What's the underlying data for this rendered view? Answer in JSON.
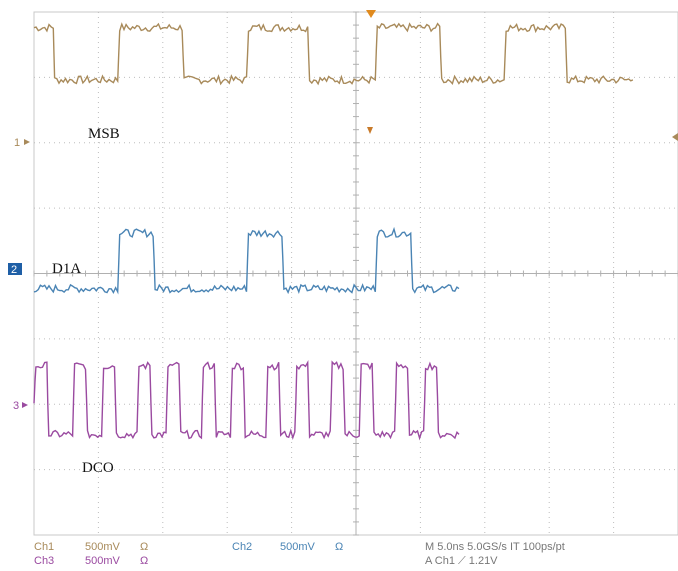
{
  "chart_data": {
    "type": "line",
    "grid": true,
    "x_divisions": 10,
    "y_divisions": 8,
    "series": [
      {
        "name": "MSB",
        "channel_marker": "1",
        "color": "#a88a5a",
        "x": [
          0,
          0.3,
          0.32,
          1.3,
          1.33,
          2.3,
          2.33,
          3.3,
          3.33,
          4.25,
          4.28,
          5.3,
          5.33,
          6.3,
          6.33,
          7.3,
          7.33,
          8.25,
          8.28,
          9.3
        ],
        "y": [
          1.75,
          1.75,
          0.95,
          0.95,
          1.75,
          1.75,
          0.95,
          0.95,
          1.75,
          1.75,
          0.95,
          0.95,
          1.75,
          1.75,
          0.95,
          0.95,
          1.75,
          1.75,
          0.95,
          0.95
        ]
      },
      {
        "name": "D1A",
        "channel_marker": "2",
        "color": "#4a84b4",
        "x": [
          0,
          1.3,
          1.33,
          1.85,
          1.88,
          3.3,
          3.33,
          3.85,
          3.88,
          5.3,
          5.33,
          5.85,
          5.88,
          6.6
        ],
        "y": [
          -0.3,
          -0.3,
          0.55,
          0.55,
          -0.3,
          -0.3,
          0.55,
          0.55,
          -0.3,
          -0.3,
          0.55,
          0.55,
          -0.3,
          -0.3
        ]
      },
      {
        "name": "DCO",
        "channel_marker": "3",
        "color": "#9a4aa0",
        "x": [
          0,
          0.03,
          0.2,
          0.23,
          0.6,
          0.63,
          0.8,
          0.83,
          1.05,
          1.08,
          1.25,
          1.28,
          1.6,
          1.63,
          1.8,
          1.83,
          2.05,
          2.08,
          2.25,
          2.28,
          2.6,
          2.63,
          2.8,
          2.83,
          3.05,
          3.08,
          3.25,
          3.28,
          3.6,
          3.63,
          3.8,
          3.83,
          4.05,
          4.08,
          4.25,
          4.28,
          4.6,
          4.63,
          4.8,
          4.83,
          5.05,
          5.08,
          5.25,
          5.28,
          5.6,
          5.63,
          5.8,
          5.83,
          6.05,
          6.08,
          6.25,
          6.28,
          6.6
        ],
        "y": [
          0.05,
          0.6,
          0.6,
          -0.45,
          -0.45,
          0.6,
          0.6,
          -0.45,
          -0.45,
          0.6,
          0.6,
          -0.45,
          -0.45,
          0.6,
          0.6,
          -0.45,
          -0.45,
          0.6,
          0.6,
          -0.45,
          -0.45,
          0.6,
          0.6,
          -0.45,
          -0.45,
          0.6,
          0.6,
          -0.45,
          -0.45,
          0.6,
          0.6,
          -0.45,
          -0.45,
          0.6,
          0.6,
          -0.45,
          -0.45,
          0.6,
          0.6,
          -0.45,
          -0.45,
          0.6,
          0.6,
          -0.45,
          -0.45,
          0.6,
          0.6,
          -0.45,
          -0.45,
          0.6,
          0.6,
          -0.45,
          -0.45
        ]
      }
    ],
    "annotations": {
      "msb_label": "MSB",
      "d1a_label": "D1A",
      "dco_label": "DCO",
      "marker_1": "1",
      "marker_2": "2",
      "marker_3": "3"
    }
  },
  "status_bar": {
    "ch1_name": "Ch1",
    "ch1_scale": "500mV",
    "ch1_coupling": "Ω",
    "ch2_name": "Ch2",
    "ch2_scale": "500mV",
    "ch2_coupling": "Ω",
    "ch3_name": "Ch3",
    "ch3_scale": "500mV",
    "ch3_coupling": "Ω",
    "timebase": "M 5.0ns 5.0GS/s IT 100ps/pt",
    "trigger": "A Ch1 ⟋ 1.21V",
    "colors": {
      "ch1": "#a88a5a",
      "ch2": "#4a84b4",
      "ch3": "#9a4aa0",
      "info": "#777777"
    }
  }
}
